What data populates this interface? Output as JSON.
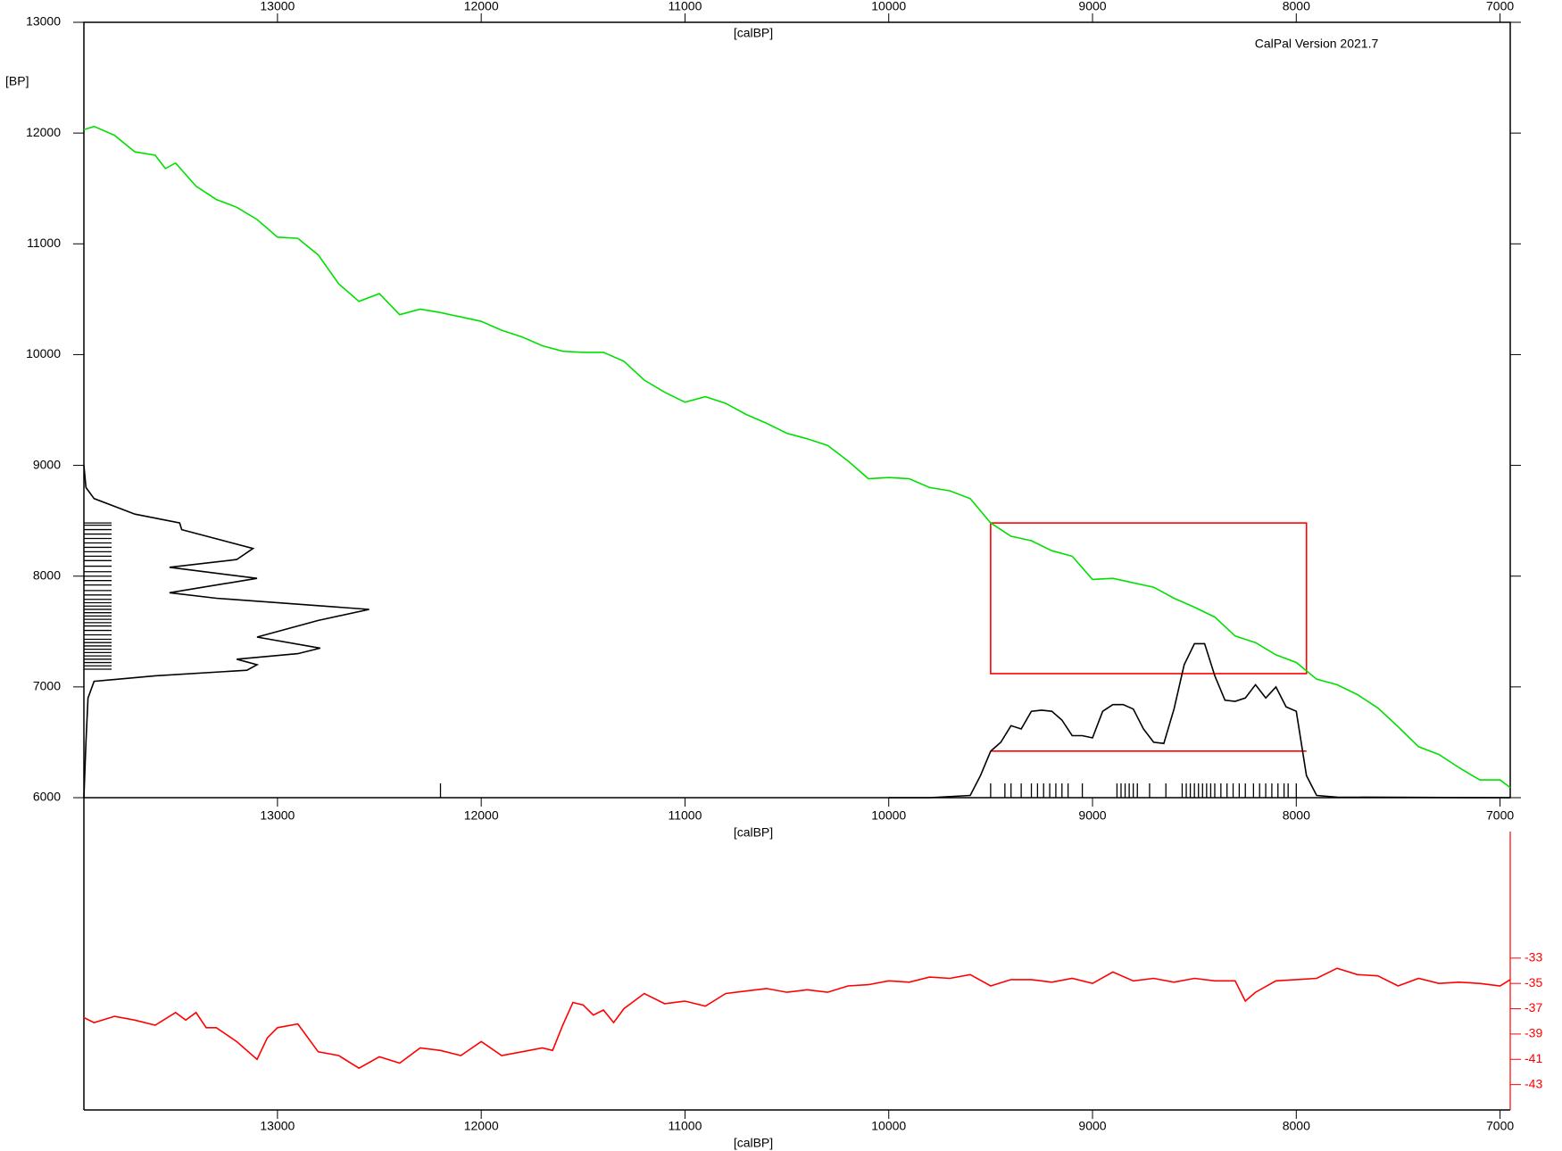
{
  "chart_data": [
    {
      "type": "line",
      "annotation": "CalPal Version 2021.7",
      "xlabel": "[calBP]",
      "ylabel": "[BP]",
      "xlim": [
        13950,
        6950
      ],
      "xticks": [
        13000,
        12000,
        11000,
        10000,
        9000,
        8000,
        7000
      ],
      "ylim": [
        6000,
        13000
      ],
      "yticks": [
        6000,
        7000,
        8000,
        9000,
        10000,
        11000,
        12000,
        13000
      ],
      "series": [
        {
          "color": "#00e000",
          "x": [
            13950,
            13900,
            13800,
            13700,
            13600,
            13550,
            13500,
            13400,
            13300,
            13200,
            13100,
            13000,
            12900,
            12800,
            12700,
            12600,
            12500,
            12400,
            12300,
            12200,
            12100,
            12000,
            11900,
            11800,
            11700,
            11600,
            11500,
            11400,
            11300,
            11200,
            11100,
            11000,
            10900,
            10800,
            10700,
            10600,
            10500,
            10400,
            10300,
            10200,
            10100,
            10000,
            9900,
            9800,
            9700,
            9600,
            9500,
            9400,
            9300,
            9200,
            9100,
            9000,
            8900,
            8800,
            8700,
            8600,
            8500,
            8400,
            8300,
            8200,
            8100,
            8000,
            7900,
            7800,
            7700,
            7600,
            7500,
            7400,
            7300,
            7200,
            7100,
            7000,
            6950
          ],
          "values": [
            12030,
            12060,
            11980,
            11830,
            11800,
            11680,
            11730,
            11520,
            11400,
            11330,
            11220,
            11060,
            11050,
            10900,
            10640,
            10480,
            10550,
            10360,
            10410,
            10380,
            10340,
            10300,
            10220,
            10160,
            10080,
            10030,
            10020,
            10020,
            9940,
            9770,
            9660,
            9570,
            9620,
            9560,
            9460,
            9380,
            9290,
            9240,
            9180,
            9040,
            8880,
            8890,
            8880,
            8800,
            8770,
            8700,
            8480,
            8360,
            8320,
            8230,
            8180,
            7970,
            7980,
            7940,
            7900,
            7800,
            7720,
            7630,
            7460,
            7400,
            7290,
            7220,
            7070,
            7020,
            6930,
            6810,
            6640,
            6460,
            6390,
            6270,
            6160,
            6160,
            6090
          ]
        },
        {
          "color": "#000000",
          "x": [
            10000,
            9800,
            9600,
            9550,
            9500,
            9450,
            9400,
            9350,
            9300,
            9250,
            9200,
            9150,
            9100,
            9050,
            9000,
            8950,
            8900,
            8850,
            8800,
            8750,
            8700,
            8650,
            8600,
            8550,
            8500,
            8450,
            8400,
            8350,
            8300,
            8250,
            8200,
            8150,
            8100,
            8050,
            8000,
            7950,
            7900,
            7800,
            7000,
            6950
          ],
          "values": [
            6000,
            6000,
            6020,
            6200,
            6420,
            6500,
            6650,
            6620,
            6780,
            6790,
            6780,
            6700,
            6560,
            6560,
            6540,
            6780,
            6840,
            6840,
            6800,
            6620,
            6500,
            6490,
            6800,
            7200,
            7390,
            7390,
            7100,
            6880,
            6870,
            6900,
            7020,
            6900,
            7000,
            6820,
            6780,
            6200,
            6020,
            6005,
            6000,
            6000
          ]
        },
        {
          "color": "#000000",
          "x": [
            13950,
            13940,
            13930,
            13900,
            13600,
            13150,
            13100,
            13200,
            12900,
            12790,
            13100,
            12800,
            12550,
            13300,
            13530,
            13100,
            13530,
            13200,
            13120,
            13470,
            13480,
            13700,
            13900,
            13940,
            13950
          ],
          "values": [
            6000,
            6500,
            6900,
            7050,
            7100,
            7150,
            7200,
            7250,
            7300,
            7350,
            7450,
            7600,
            7700,
            7800,
            7850,
            7980,
            8080,
            8150,
            8250,
            8420,
            8480,
            8560,
            8700,
            8800,
            9000
          ]
        }
      ],
      "box": {
        "color": "#ff0000",
        "x": [
          9500,
          7950
        ],
        "y": [
          7120,
          8480
        ]
      },
      "hline": {
        "color": "#ff0000",
        "x": [
          9500,
          7950
        ],
        "y": 6420
      },
      "rug_x": [
        12200,
        9500,
        9430,
        9400,
        9350,
        9300,
        9270,
        9240,
        9210,
        9180,
        9150,
        9120,
        9050,
        8880,
        8860,
        8840,
        8820,
        8800,
        8780,
        8720,
        8640,
        8560,
        8540,
        8520,
        8500,
        8480,
        8460,
        8440,
        8420,
        8400,
        8370,
        8340,
        8310,
        8280,
        8250,
        8210,
        8180,
        8150,
        8120,
        8090,
        8060,
        8040,
        8000
      ],
      "rug_y": [
        7160,
        7190,
        7220,
        7250,
        7280,
        7310,
        7340,
        7370,
        7400,
        7430,
        7470,
        7510,
        7550,
        7580,
        7610,
        7640,
        7670,
        7700,
        7730,
        7760,
        7790,
        7830,
        7870,
        7920,
        7960,
        8000,
        8040,
        8090,
        8140,
        8180,
        8220,
        8260,
        8300,
        8340,
        8380,
        8420,
        8460,
        8480
      ]
    },
    {
      "type": "line",
      "xlabel": "[calBP]",
      "xlim": [
        13950,
        6950
      ],
      "xticks": [
        13000,
        12000,
        11000,
        10000,
        9000,
        8000,
        7000
      ],
      "y2lim": [
        -45,
        -23
      ],
      "y2ticks": [
        -33,
        -35,
        -37,
        -39,
        -41,
        -43
      ],
      "series": [
        {
          "color": "#ff0000",
          "axis": "y2",
          "x": [
            13950,
            13900,
            13800,
            13700,
            13600,
            13500,
            13450,
            13400,
            13350,
            13300,
            13200,
            13100,
            13050,
            13000,
            12900,
            12800,
            12700,
            12600,
            12500,
            12400,
            12300,
            12200,
            12100,
            12000,
            11900,
            11800,
            11700,
            11650,
            11600,
            11550,
            11500,
            11450,
            11400,
            11350,
            11300,
            11200,
            11100,
            11000,
            10900,
            10800,
            10700,
            10600,
            10500,
            10400,
            10300,
            10200,
            10100,
            10000,
            9900,
            9800,
            9700,
            9600,
            9500,
            9400,
            9300,
            9200,
            9100,
            9000,
            8900,
            8800,
            8700,
            8600,
            8500,
            8400,
            8300,
            8250,
            8200,
            8100,
            8000,
            7900,
            7800,
            7700,
            7600,
            7500,
            7400,
            7300,
            7200,
            7100,
            7000,
            6950
          ],
          "values": [
            -37.7,
            -38.1,
            -37.6,
            -37.9,
            -38.3,
            -37.3,
            -37.9,
            -37.3,
            -38.5,
            -38.5,
            -39.6,
            -41.0,
            -39.3,
            -38.5,
            -38.2,
            -40.4,
            -40.7,
            -41.7,
            -40.8,
            -41.3,
            -40.1,
            -40.3,
            -40.7,
            -39.6,
            -40.7,
            -40.4,
            -40.1,
            -40.3,
            -38.3,
            -36.5,
            -36.7,
            -37.5,
            -37.1,
            -38.1,
            -37.0,
            -35.8,
            -36.6,
            -36.4,
            -36.8,
            -35.8,
            -35.6,
            -35.4,
            -35.7,
            -35.5,
            -35.7,
            -35.2,
            -35.1,
            -34.8,
            -34.9,
            -34.5,
            -34.6,
            -34.3,
            -35.2,
            -34.7,
            -34.7,
            -34.9,
            -34.6,
            -35.0,
            -34.1,
            -34.8,
            -34.6,
            -34.9,
            -34.6,
            -34.8,
            -34.8,
            -36.4,
            -35.7,
            -34.8,
            -34.7,
            -34.6,
            -33.8,
            -34.3,
            -34.4,
            -35.2,
            -34.6,
            -35.0,
            -34.9,
            -35.0,
            -35.2,
            -34.7
          ]
        }
      ]
    }
  ]
}
